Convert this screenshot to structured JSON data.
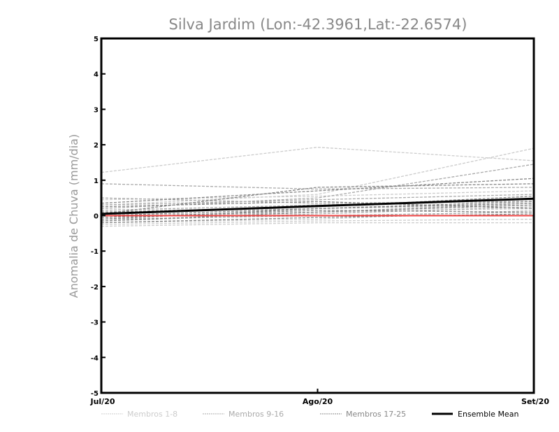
{
  "chart_data": {
    "type": "line",
    "title": "Silva Jardim (Lon:-42.3961,Lat:-22.6574)",
    "xlabel": "",
    "ylabel": "Anomalia de Chuva (mm/dia)",
    "categories": [
      "Jul/20",
      "Ago/20",
      "Set/20"
    ],
    "ylim": [
      -5,
      5
    ],
    "yticks": [
      "-5",
      "-4",
      "-3",
      "-2",
      "-1",
      "0",
      "1",
      "2",
      "3",
      "4",
      "5"
    ],
    "grid": false,
    "legend_position": "bottom",
    "groups": [
      {
        "name": "Membros 1-8",
        "color": "#cccccc",
        "dashed": true,
        "members": [
          [
            1.22,
            1.93,
            1.55
          ],
          [
            0.3,
            0.6,
            1.9
          ],
          [
            -0.3,
            -0.2,
            -0.2
          ],
          [
            -0.25,
            -0.15,
            -0.1
          ],
          [
            0.1,
            0.2,
            0.3
          ],
          [
            0.45,
            0.55,
            0.7
          ],
          [
            -0.2,
            -0.1,
            0.15
          ],
          [
            0.0,
            0.1,
            0.2
          ]
        ]
      },
      {
        "name": "Membros 9-16",
        "color": "#aaaaaa",
        "dashed": true,
        "members": [
          [
            0.9,
            0.75,
            0.8
          ],
          [
            0.5,
            0.35,
            0.4
          ],
          [
            0.2,
            0.5,
            1.45
          ],
          [
            -0.1,
            0.0,
            0.1
          ],
          [
            -0.15,
            0.05,
            0.25
          ],
          [
            0.3,
            0.45,
            0.6
          ],
          [
            -0.05,
            0.1,
            0.35
          ],
          [
            0.15,
            0.3,
            0.45
          ]
        ]
      },
      {
        "name": "Membros 17-25",
        "color": "#888888",
        "dashed": true,
        "members": [
          [
            0.35,
            0.7,
            1.05
          ],
          [
            0.05,
            0.8,
            0.9
          ],
          [
            -0.1,
            0.2,
            0.35
          ],
          [
            -0.2,
            -0.05,
            0.05
          ],
          [
            0.25,
            0.4,
            0.2
          ],
          [
            -0.15,
            0.1,
            0.3
          ],
          [
            0.1,
            0.25,
            0.55
          ],
          [
            -0.05,
            0.15,
            0.1
          ],
          [
            0.0,
            0.2,
            0.4
          ]
        ]
      }
    ],
    "ensemble_mean": {
      "name": "Ensemble Mean",
      "color": "#000000",
      "values": [
        0.05,
        0.27,
        0.48
      ]
    },
    "zero_line": {
      "color": "#ee4444",
      "value": 0
    }
  }
}
